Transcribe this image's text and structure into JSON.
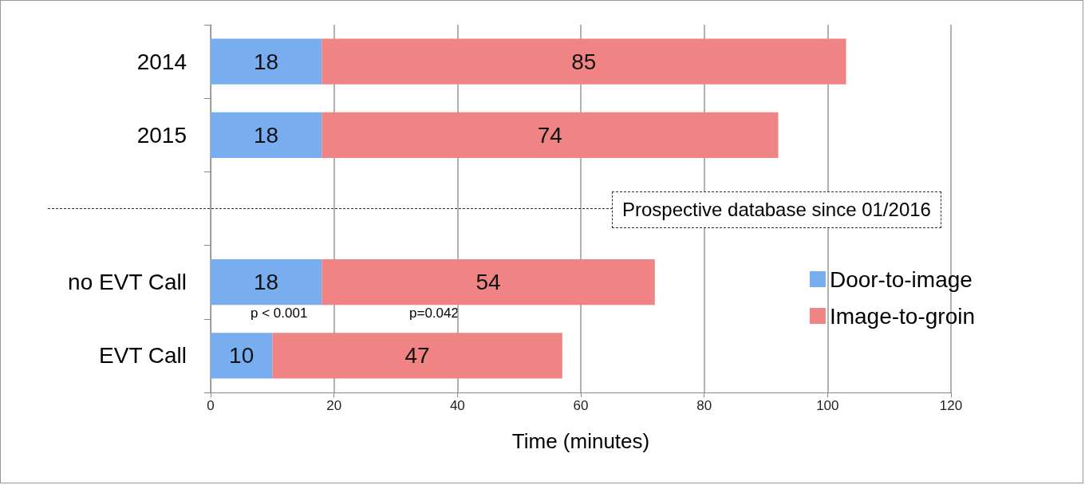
{
  "chart_data": {
    "type": "bar",
    "orientation": "horizontal",
    "stacked": true,
    "xlabel": "Time (minutes)",
    "categories": [
      "2014",
      "2015",
      null,
      "no EVT Call",
      "EVT Call"
    ],
    "series": [
      {
        "name": "Door-to-image",
        "color": "#78aef0",
        "values": [
          18,
          18,
          null,
          18,
          10
        ]
      },
      {
        "name": "Image-to-groin",
        "color": "#f08484",
        "values": [
          85,
          74,
          null,
          54,
          47
        ]
      }
    ],
    "xlim": [
      0,
      120
    ],
    "xticks": [
      0,
      20,
      40,
      60,
      80,
      100,
      120
    ],
    "grid": "x",
    "legend": "right",
    "data_labels": true,
    "annotations": [
      "Prospective database since 01/2016",
      "p < 0.001",
      "p=0.042"
    ]
  }
}
